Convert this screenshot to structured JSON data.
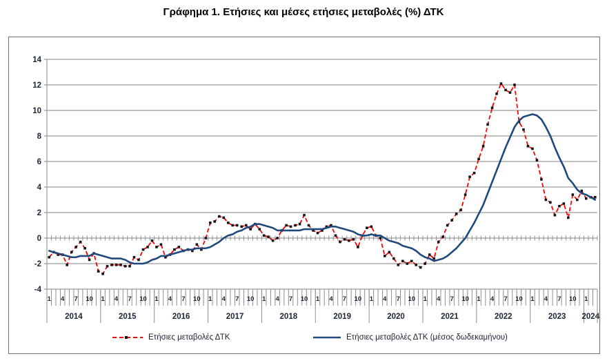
{
  "chart_data": {
    "type": "line",
    "title": "Γράφημα 1. Ετήσιες και μέσες ετήσιες μεταβολές (%) ΔΤΚ",
    "ylim": [
      -4,
      14
    ],
    "y_ticks": [
      14,
      12,
      10,
      8,
      6,
      4,
      2,
      0,
      -2,
      -4
    ],
    "grid": "horizontal",
    "legend_position": "bottom",
    "x_axis": {
      "unit": "month",
      "start": "2014-01",
      "end": "2024-03",
      "years": [
        "2014",
        "2015",
        "2016",
        "2017",
        "2018",
        "2019",
        "2020",
        "2021",
        "2022",
        "2023",
        "2024"
      ],
      "month_tick_labels": [
        "1",
        "4",
        "7",
        "10"
      ],
      "months_in_last_year": 3
    },
    "series": [
      {
        "name": "Ετήσιες μεταβολές ΔΤΚ",
        "color": "#FF0000",
        "line_style": "dashed",
        "marker": "black-square",
        "values": [
          -1.5,
          -1.1,
          -1.3,
          -1.3,
          -2.1,
          -1.1,
          -0.7,
          -0.3,
          -0.8,
          -1.7,
          -1.2,
          -2.6,
          -2.8,
          -2.2,
          -2.1,
          -2.1,
          -2.1,
          -2.2,
          -2.2,
          -1.5,
          -1.7,
          -0.9,
          -0.7,
          -0.2,
          -0.7,
          -0.5,
          -1.5,
          -1.3,
          -0.9,
          -0.7,
          -1.0,
          -0.9,
          -1.0,
          -0.5,
          -0.9,
          0.0,
          1.2,
          1.3,
          1.7,
          1.6,
          1.2,
          1.0,
          1.0,
          0.9,
          1.0,
          0.7,
          1.1,
          0.7,
          0.2,
          0.1,
          -0.2,
          0.0,
          0.6,
          1.0,
          0.9,
          1.0,
          1.1,
          1.8,
          1.0,
          0.6,
          0.4,
          0.6,
          0.9,
          1.0,
          0.2,
          -0.3,
          -0.1,
          -0.2,
          -0.1,
          -0.7,
          0.2,
          0.8,
          0.9,
          0.2,
          0.0,
          -1.4,
          -1.1,
          -1.6,
          -2.1,
          -1.8,
          -2.0,
          -1.8,
          -2.1,
          -2.3,
          -2.0,
          -1.3,
          -1.6,
          -0.3,
          0.1,
          1.0,
          1.4,
          1.9,
          2.2,
          3.4,
          4.8,
          5.1,
          6.2,
          7.2,
          8.9,
          10.2,
          11.3,
          12.1,
          11.6,
          11.4,
          12.0,
          9.1,
          8.5,
          7.2,
          7.0,
          6.1,
          4.6,
          3.0,
          2.8,
          1.8,
          2.5,
          2.7,
          1.6,
          3.4,
          3.0,
          3.7,
          3.1,
          3.2,
          3.2
        ]
      },
      {
        "name": "Ετήσιες μεταβολές ΔΤΚ (μέσος δωδεκαμήνου)",
        "color": "#1F497D",
        "line_style": "solid",
        "marker": "none",
        "values": [
          -1.0,
          -1.1,
          -1.2,
          -1.3,
          -1.4,
          -1.5,
          -1.5,
          -1.4,
          -1.4,
          -1.4,
          -1.2,
          -1.3,
          -1.4,
          -1.5,
          -1.6,
          -1.6,
          -1.6,
          -1.7,
          -1.9,
          -2.0,
          -2.0,
          -2.0,
          -1.9,
          -1.7,
          -1.6,
          -1.4,
          -1.4,
          -1.3,
          -1.2,
          -1.1,
          -1.0,
          -0.9,
          -0.9,
          -0.8,
          -0.8,
          -0.8,
          -0.7,
          -0.5,
          -0.3,
          0.0,
          0.2,
          0.3,
          0.5,
          0.6,
          0.8,
          0.9,
          1.1,
          1.1,
          1.0,
          0.9,
          0.8,
          0.6,
          0.6,
          0.6,
          0.6,
          0.6,
          0.6,
          0.7,
          0.7,
          0.7,
          0.7,
          0.7,
          0.8,
          0.9,
          0.9,
          0.8,
          0.7,
          0.6,
          0.5,
          0.3,
          0.2,
          0.2,
          0.3,
          0.2,
          0.2,
          0.0,
          -0.2,
          -0.3,
          -0.4,
          -0.6,
          -0.7,
          -0.8,
          -1.0,
          -1.3,
          -1.5,
          -1.6,
          -1.8,
          -1.7,
          -1.6,
          -1.4,
          -1.1,
          -0.8,
          -0.4,
          0.0,
          0.6,
          1.2,
          1.9,
          2.6,
          3.5,
          4.4,
          5.3,
          6.2,
          7.1,
          7.9,
          8.7,
          9.2,
          9.5,
          9.6,
          9.7,
          9.6,
          9.3,
          8.7,
          8.0,
          7.1,
          6.3,
          5.6,
          4.7,
          4.3,
          3.8,
          3.5,
          3.4,
          3.2,
          3.0
        ]
      }
    ]
  }
}
